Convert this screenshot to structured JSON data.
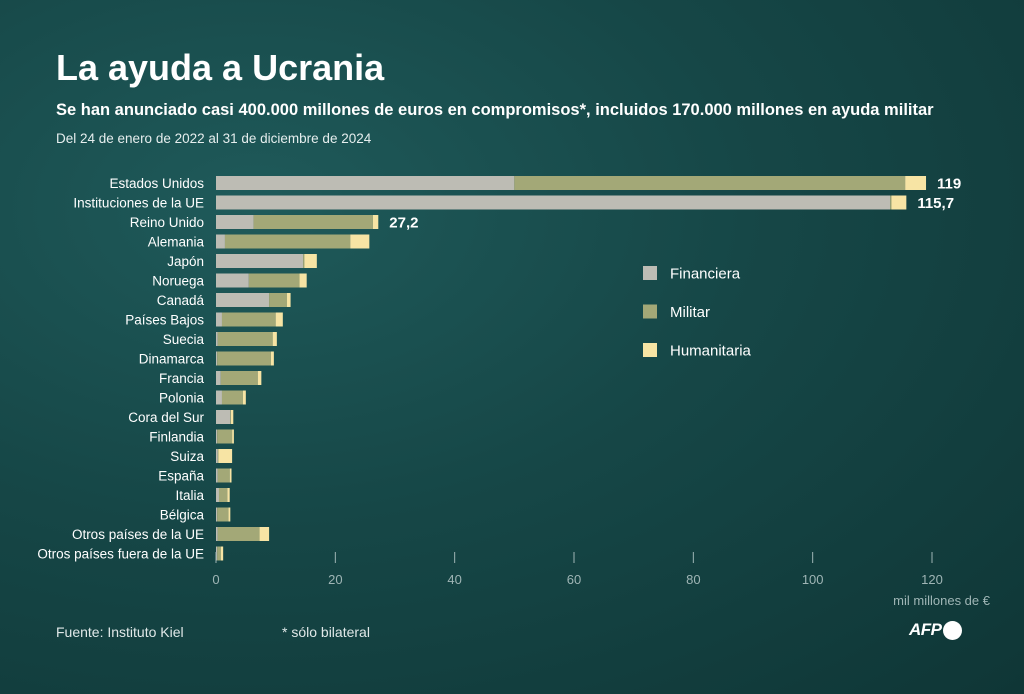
{
  "header": {
    "title": "La ayuda a Ucrania",
    "subtitle": "Se han anunciado casi 400.000 millones de euros en compromisos*, incluidos 170.000 millones en ayuda militar",
    "period": "Del 24 de enero de 2022 al 31 de diciembre de 2024"
  },
  "footer": {
    "source": "Fuente: Instituto Kiel",
    "footnote": "* sólo bilateral",
    "logo": "AFP"
  },
  "colors": {
    "financiera": "#bdbcb4",
    "militar": "#a3a877",
    "humanitaria": "#f7e4a4",
    "tick": "#9fb5b5"
  },
  "chart_data": {
    "type": "bar",
    "orientation": "horizontal",
    "stacked": true,
    "categories": [
      "Estados Unidos",
      "Instituciones de la UE",
      "Reino Unido",
      "Alemania",
      "Japón",
      "Noruega",
      "Canadá",
      "Países Bajos",
      "Suecia",
      "Dinamarca",
      "Francia",
      "Polonia",
      "Cora del Sur",
      "Finlandia",
      "Suiza",
      "España",
      "Italia",
      "Bélgica",
      "Otros países de la UE",
      "Otros países fuera de la UE"
    ],
    "series": [
      {
        "name": "Financiera",
        "values": [
          50.0,
          113.0,
          6.3,
          1.5,
          14.6,
          5.5,
          8.9,
          1.0,
          0.3,
          0.2,
          0.8,
          1.0,
          2.4,
          0.2,
          0.3,
          0.3,
          0.5,
          0.2,
          0.3,
          0.2
        ]
      },
      {
        "name": "Militar",
        "values": [
          65.5,
          0.2,
          20.0,
          21.0,
          0.2,
          8.5,
          3.0,
          9.0,
          9.2,
          9.0,
          6.2,
          3.5,
          0.1,
          2.5,
          0.1,
          2.0,
          1.4,
          1.9,
          7.0,
          0.6
        ]
      },
      {
        "name": "Humanitaria",
        "values": [
          3.5,
          2.5,
          0.9,
          3.2,
          2.1,
          1.2,
          0.6,
          1.2,
          0.7,
          0.5,
          0.6,
          0.5,
          0.4,
          0.3,
          2.3,
          0.3,
          0.4,
          0.3,
          1.6,
          0.4
        ]
      }
    ],
    "totals": [
      {
        "category": "Estados Unidos",
        "label": "119"
      },
      {
        "category": "Instituciones de la UE",
        "label": "115,7"
      },
      {
        "category": "Reino Unido",
        "label": "27,2"
      }
    ],
    "xticks": [
      0,
      20,
      40,
      60,
      80,
      100,
      120
    ],
    "xlim": [
      0,
      120
    ],
    "xlabel": "mil millones de €",
    "legend_position": "right",
    "grid": false
  }
}
